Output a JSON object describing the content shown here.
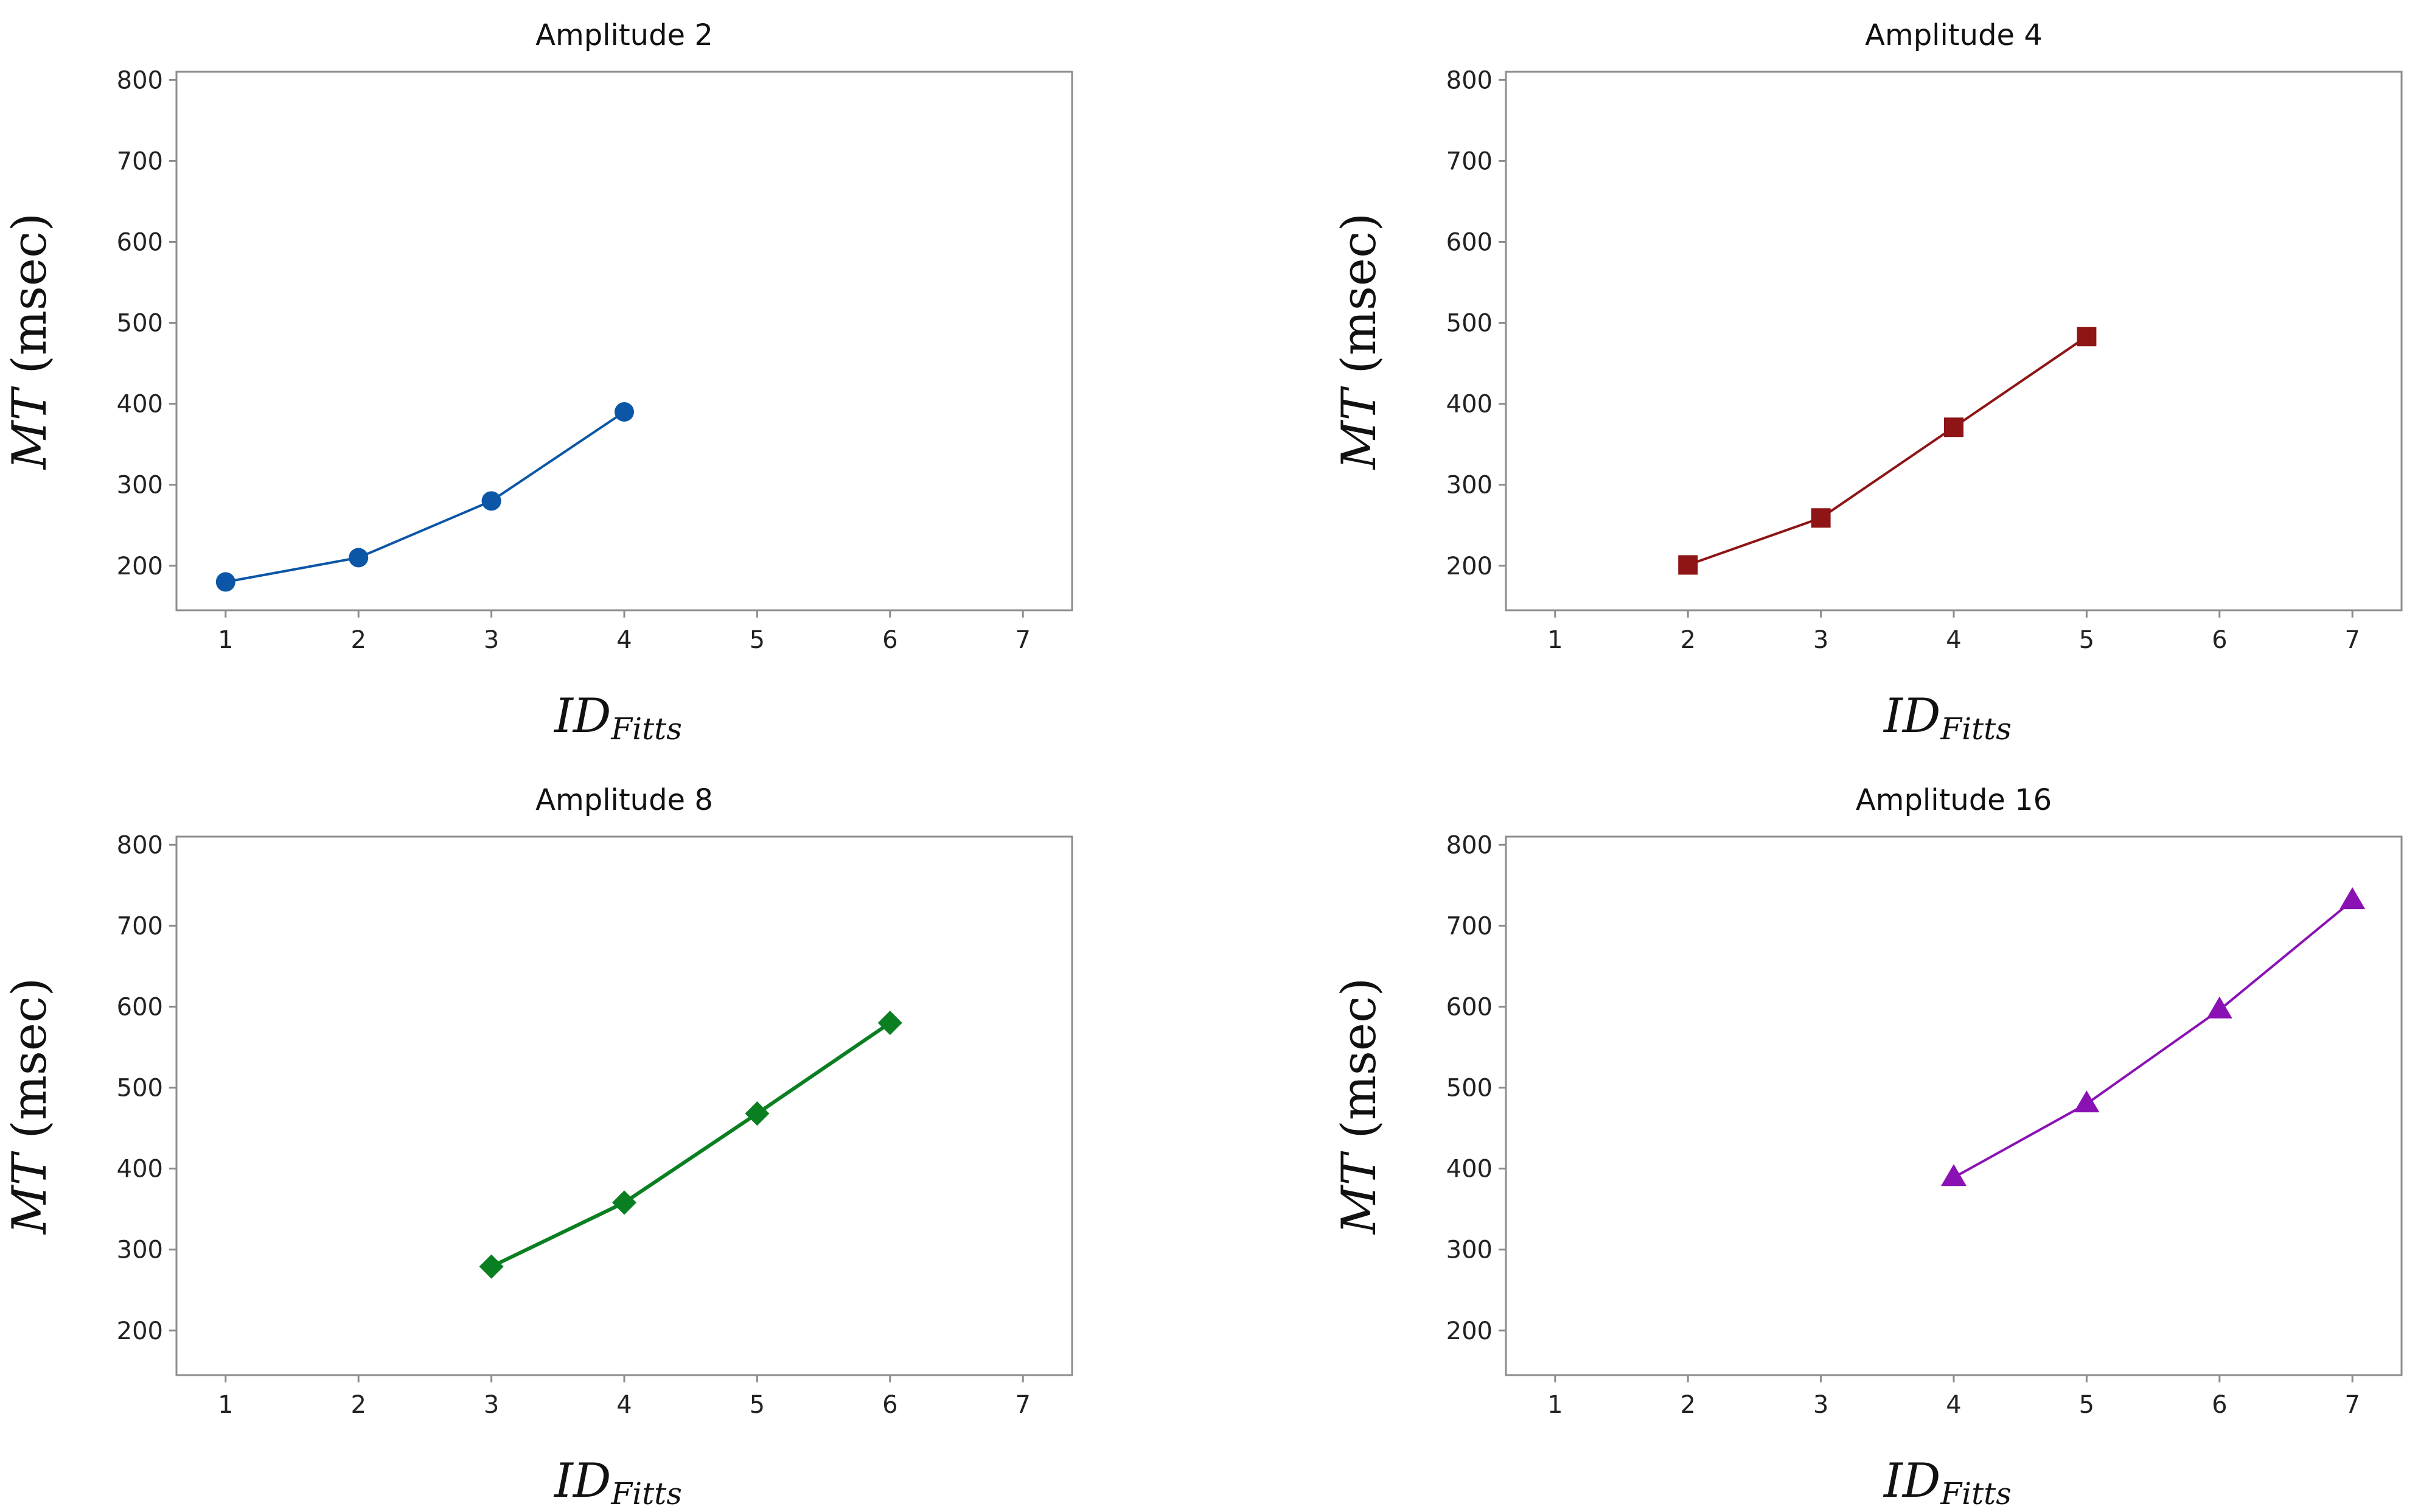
{
  "figure": {
    "charts": [
      {
        "title": "Amplitude 2",
        "xlabel": "ID",
        "xlabel_sub": "Fitts",
        "ylabel_italic": "MT",
        "ylabel_rest": " (msec)",
        "color": "#0b56a6",
        "marker": "circle",
        "x_ticks": [
          "1",
          "2",
          "3",
          "4",
          "5",
          "6",
          "7"
        ],
        "y_ticks": [
          "200",
          "300",
          "400",
          "500",
          "600",
          "700",
          "800"
        ]
      },
      {
        "title": "Amplitude 4",
        "xlabel": "ID",
        "xlabel_sub": "Fitts",
        "ylabel_italic": "MT",
        "ylabel_rest": " (msec)",
        "color": "#8e1416",
        "marker": "square",
        "x_ticks": [
          "1",
          "2",
          "3",
          "4",
          "5",
          "6",
          "7"
        ],
        "y_ticks": [
          "200",
          "300",
          "400",
          "500",
          "600",
          "700",
          "800"
        ]
      },
      {
        "title": "Amplitude 8",
        "xlabel": "ID",
        "xlabel_sub": "Fitts",
        "ylabel_italic": "MT",
        "ylabel_rest": " (msec)",
        "color": "#0a7f22",
        "marker": "diamond",
        "x_ticks": [
          "1",
          "2",
          "3",
          "4",
          "5",
          "6",
          "7"
        ],
        "y_ticks": [
          "200",
          "300",
          "400",
          "500",
          "600",
          "700",
          "800"
        ]
      },
      {
        "title": "Amplitude 16",
        "xlabel": "ID",
        "xlabel_sub": "Fitts",
        "ylabel_italic": "MT",
        "ylabel_rest": " (msec)",
        "color": "#8a12b4",
        "marker": "triangle",
        "x_ticks": [
          "1",
          "2",
          "3",
          "4",
          "5",
          "6",
          "7"
        ],
        "y_ticks": [
          "200",
          "300",
          "400",
          "500",
          "600",
          "700",
          "800"
        ]
      }
    ]
  },
  "chart_data": [
    {
      "type": "line",
      "title": "Amplitude 2",
      "xlabel": "ID_Fitts",
      "ylabel": "MT (msec)",
      "xlim": [
        0.63,
        7.37
      ],
      "ylim": [
        145,
        810
      ],
      "grid": false,
      "series": [
        {
          "name": "Amplitude 2",
          "x": [
            1,
            2,
            3,
            4
          ],
          "values": [
            180,
            210,
            280,
            390
          ]
        }
      ]
    },
    {
      "type": "line",
      "title": "Amplitude 4",
      "xlabel": "ID_Fitts",
      "ylabel": "MT (msec)",
      "xlim": [
        0.63,
        7.37
      ],
      "ylim": [
        145,
        810
      ],
      "grid": false,
      "series": [
        {
          "name": "Amplitude 4",
          "x": [
            2,
            3,
            4,
            5
          ],
          "values": [
            201,
            259,
            371,
            483
          ]
        }
      ]
    },
    {
      "type": "line",
      "title": "Amplitude 8",
      "xlabel": "ID_Fitts",
      "ylabel": "MT (msec)",
      "xlim": [
        0.63,
        7.37
      ],
      "ylim": [
        145,
        810
      ],
      "grid": false,
      "series": [
        {
          "name": "Amplitude 8",
          "x": [
            3,
            4,
            5,
            6
          ],
          "values": [
            279,
            358,
            468,
            580
          ]
        }
      ]
    },
    {
      "type": "line",
      "title": "Amplitude 16",
      "xlabel": "ID_Fitts",
      "ylabel": "MT (msec)",
      "xlim": [
        0.63,
        7.37
      ],
      "ylim": [
        145,
        810
      ],
      "grid": false,
      "series": [
        {
          "name": "Amplitude 16",
          "x": [
            4,
            5,
            6,
            7
          ],
          "values": [
            389,
            480,
            596,
            731
          ]
        }
      ]
    }
  ]
}
